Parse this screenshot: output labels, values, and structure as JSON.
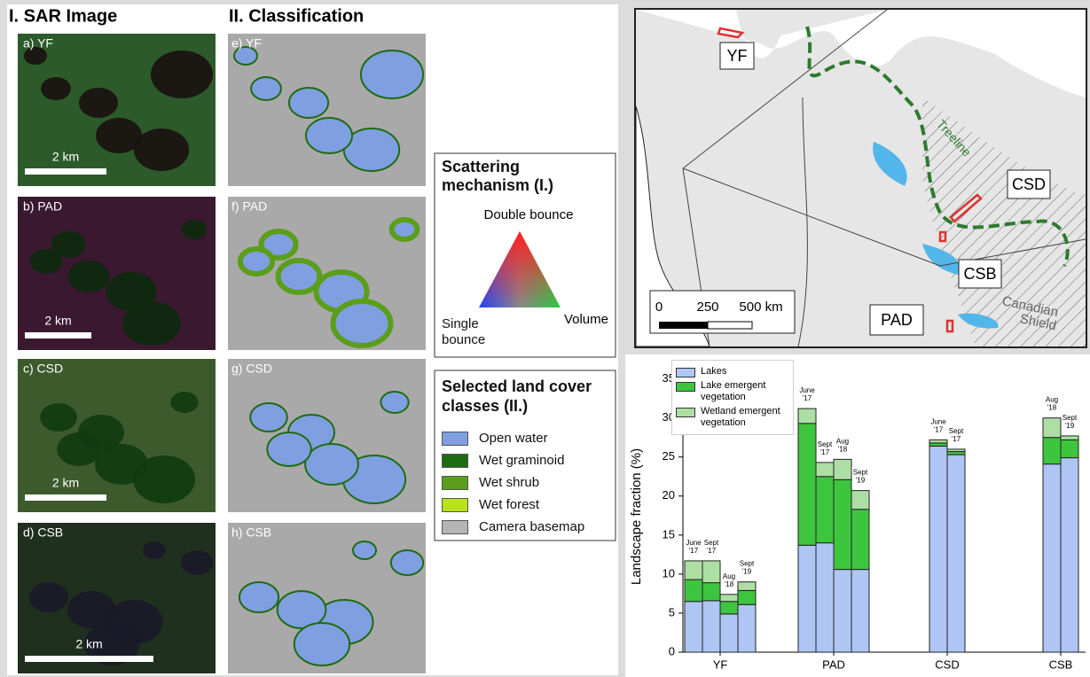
{
  "left_panel": {
    "headers": [
      "I. SAR Image",
      "II. Classification"
    ],
    "sar_panels": [
      {
        "label": "a) YF",
        "scale": "2 km"
      },
      {
        "label": "b) PAD",
        "scale": "2 km"
      },
      {
        "label": "c) CSD",
        "scale": "2 km"
      },
      {
        "label": "d) CSB",
        "scale": "2 km"
      }
    ],
    "classification_panels": [
      "e) YF",
      "f) PAD",
      "g) CSD",
      "h) CSB"
    ]
  },
  "scattering_legend": {
    "title": "Scattering mechanism (I.)",
    "double": "Double bounce",
    "single": "Single bounce",
    "volume": "Volume"
  },
  "land_cover_legend": {
    "title": "Selected land cover classes (II.)",
    "classes": [
      {
        "name": "Open water",
        "color": "#7f9fe0"
      },
      {
        "name": "Wet graminoid",
        "color": "#1f6b12"
      },
      {
        "name": "Wet shrub",
        "color": "#5a9e1a"
      },
      {
        "name": "Wet forest",
        "color": "#b7e21c"
      },
      {
        "name": "Camera basemap",
        "color": "#b5b5b5"
      }
    ]
  },
  "map": {
    "labels": [
      "YF",
      "CSD",
      "CSB",
      "PAD"
    ],
    "treeline": "Treeline",
    "shield": [
      "Canadian",
      "Shield"
    ],
    "scale_ticks": [
      "0",
      "250",
      "500 km"
    ]
  },
  "chart_data": {
    "type": "bar",
    "stacked": true,
    "categories": [
      "YF",
      "PAD",
      "CSD",
      "CSB"
    ],
    "bar_labels": [
      [
        "June",
        "'17"
      ],
      [
        "Sept",
        "'17"
      ],
      [
        "Aug",
        "'18"
      ],
      [
        "Sept",
        "'19"
      ]
    ],
    "ylabel": "Landscape fraction (%)",
    "ylim": [
      0,
      37
    ],
    "yticks": [
      0,
      5,
      10,
      15,
      20,
      25,
      30,
      35
    ],
    "series": [
      {
        "name": "Lakes",
        "color": "#afc5f3",
        "values": [
          [
            6.5,
            6.6,
            4.9,
            6.1
          ],
          [
            13.7,
            14.0,
            10.6,
            10.6
          ],
          [
            26.4,
            25.3,
            null,
            null
          ],
          [
            null,
            null,
            24.1,
            24.9
          ]
        ]
      },
      {
        "name": "Lake emergent vegetation",
        "color": "#3ec53e",
        "values": [
          [
            2.8,
            2.3,
            1.6,
            1.8
          ],
          [
            15.6,
            8.5,
            11.5,
            7.7
          ],
          [
            0.4,
            0.4,
            null,
            null
          ],
          [
            null,
            null,
            3.4,
            2.3
          ]
        ]
      },
      {
        "name": "Wetland emergent vegetation",
        "color": "#addfa5",
        "values": [
          [
            2.4,
            2.8,
            0.9,
            1.1
          ],
          [
            1.9,
            1.8,
            2.6,
            2.4
          ],
          [
            0.4,
            0.3,
            null,
            null
          ],
          [
            null,
            null,
            2.5,
            0.5
          ]
        ]
      }
    ]
  }
}
